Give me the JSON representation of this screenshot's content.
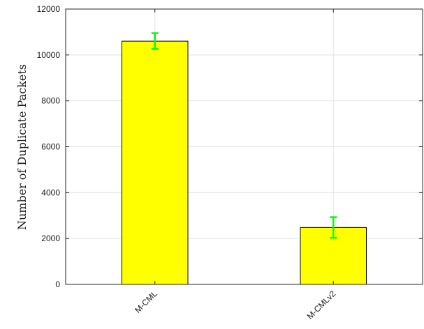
{
  "chart_data": {
    "type": "bar",
    "title": "",
    "xlabel": "",
    "ylabel": "Number of Duplicate Packets",
    "categories": [
      "M-CML",
      "M-CMLv2"
    ],
    "values": [
      10600,
      2480
    ],
    "error": [
      {
        "low": 10260,
        "high": 10950
      },
      {
        "low": 2030,
        "high": 2930
      }
    ],
    "ylim": [
      0,
      12000
    ],
    "yticks": [
      0,
      2000,
      4000,
      6000,
      8000,
      10000,
      12000
    ],
    "ytick_labels": [
      "0",
      "2000",
      "4000",
      "6000",
      "8000",
      "10000",
      "12000"
    ],
    "grid": true,
    "colors": {
      "bar": "#ffff00",
      "bar_edge": "#000000",
      "error_bar": "#00ff00",
      "grid": "#e3e3e3",
      "axis": "#262626"
    }
  }
}
